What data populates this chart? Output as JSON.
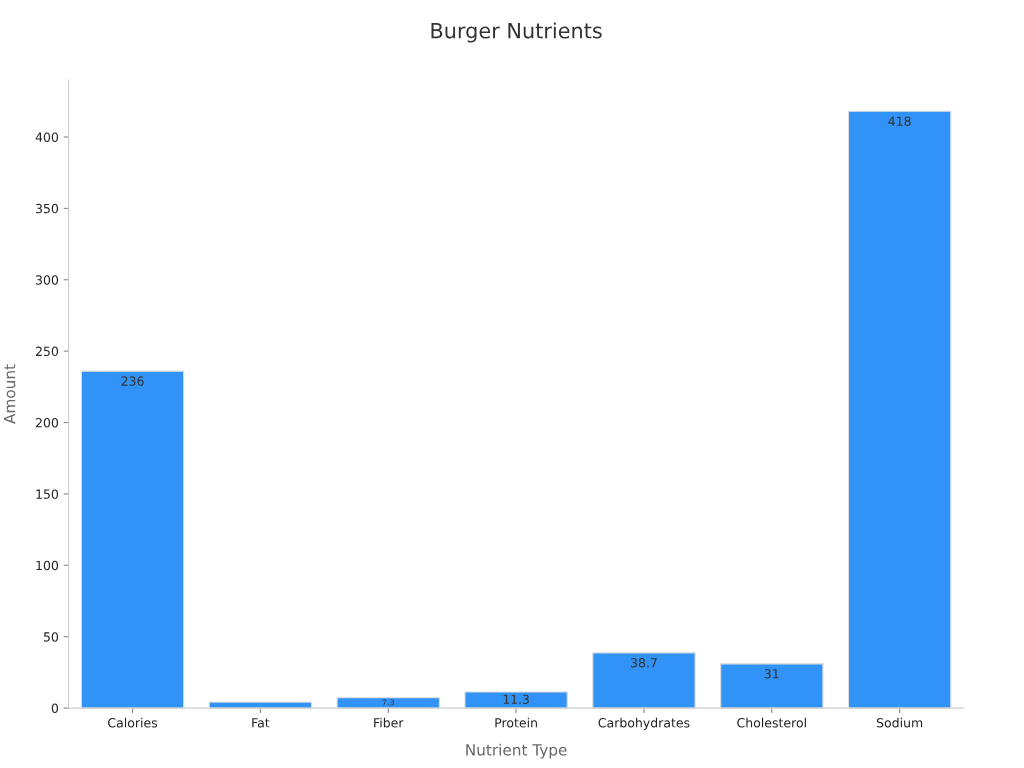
{
  "chart_data": {
    "type": "bar",
    "title": "Burger Nutrients",
    "xlabel": "Nutrient Type",
    "ylabel": "Amount",
    "categories": [
      "Calories",
      "Fat",
      "Fiber",
      "Protein",
      "Carbohydrates",
      "Cholesterol",
      "Sodium"
    ],
    "values": [
      236,
      4.2,
      7.3,
      11.3,
      38.7,
      31,
      418
    ],
    "value_labels": [
      "236",
      null,
      "7.3",
      "11.3",
      "38.7",
      "31",
      "418"
    ],
    "color": "#3192f7",
    "ylim": [
      0,
      440
    ],
    "yticks": [
      0,
      50,
      100,
      150,
      200,
      250,
      300,
      350,
      400
    ],
    "grid": false,
    "legend": false
  }
}
